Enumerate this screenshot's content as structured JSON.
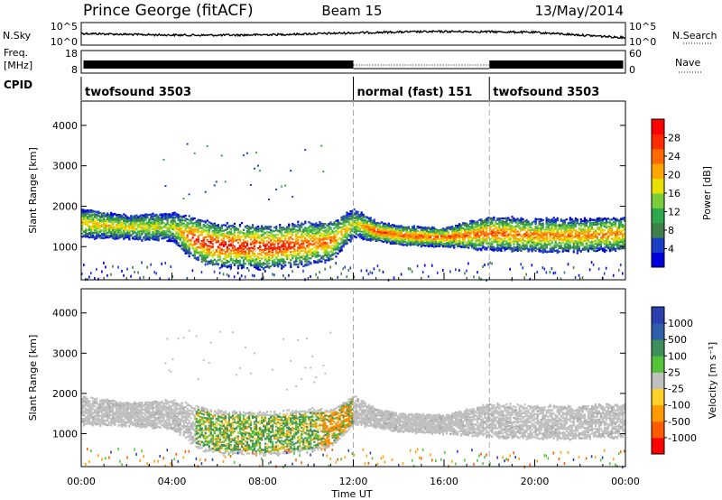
{
  "header": {
    "station": "Prince George (fitACF)",
    "beam": "Beam 15",
    "date": "13/May/2014"
  },
  "sky_panel": {
    "left_label": "N.Sky",
    "left_ticks": [
      "10^5",
      "10^0"
    ],
    "right_label": "N.Search",
    "right_ticks": [
      "10^5",
      "10^0"
    ]
  },
  "freq_panel": {
    "left_label_1": "Freq.",
    "left_label_2": "[MHz]",
    "left_ticks": [
      "18",
      "8"
    ],
    "right_label": "Nave",
    "right_ticks": [
      "60",
      "0"
    ]
  },
  "cpid": {
    "label": "CPID",
    "segments": [
      {
        "start_hour": 0,
        "end_hour": 12,
        "text": "twofsound 3503"
      },
      {
        "start_hour": 12,
        "end_hour": 18,
        "text": "normal (fast) 151"
      },
      {
        "start_hour": 18,
        "end_hour": 24,
        "text": "twofsound 3503"
      }
    ]
  },
  "x_axis": {
    "label": "Time UT",
    "ticks": [
      "00:00",
      "04:00",
      "08:00",
      "12:00",
      "16:00",
      "20:00",
      "00:00"
    ]
  },
  "power_panel": {
    "ylabel": "Slant Range [km]",
    "yticks": [
      "1000",
      "2000",
      "3000",
      "4000"
    ],
    "cbar_label": "Power [dB]",
    "cbar_ticks": [
      "4",
      "8",
      "12",
      "16",
      "20",
      "24",
      "28"
    ],
    "cbar_colors": [
      "#0000dd",
      "#1a3ec8",
      "#3f7f4a",
      "#2ea84c",
      "#7acc3a",
      "#e8e000",
      "#ffa500",
      "#ff6a00",
      "#ff2a00",
      "#ff0000"
    ]
  },
  "velocity_panel": {
    "ylabel": "Slant Range [km]",
    "yticks": [
      "1000",
      "2000",
      "3000",
      "4000"
    ],
    "cbar_label": "Velocity [m s⁻¹]",
    "cbar_ticks": [
      "1000",
      "500",
      "100",
      "25",
      "-25",
      "-100",
      "-500",
      "-1000"
    ],
    "cbar_colors": [
      "#2a3fb0",
      "#2f5fa8",
      "#3f8f5a",
      "#55c33a",
      "#c0c0c0",
      "#ffd02a",
      "#ff9a00",
      "#ff5a00",
      "#ff0000"
    ]
  },
  "chart_data": {
    "type": "heatmap",
    "x_range_hours": [
      0,
      24
    ],
    "y_range_km": [
      180,
      4600
    ],
    "power_band": {
      "hours": [
        0,
        2,
        4,
        5,
        6,
        7,
        8,
        9,
        10,
        11,
        12,
        13,
        14,
        16,
        18,
        20,
        22,
        24
      ],
      "center_km": [
        1600,
        1500,
        1500,
        1200,
        1050,
        1050,
        1000,
        1050,
        1100,
        1150,
        1600,
        1400,
        1300,
        1250,
        1350,
        1300,
        1300,
        1350
      ],
      "width_km": [
        600,
        500,
        600,
        900,
        900,
        900,
        900,
        900,
        900,
        800,
        600,
        400,
        400,
        400,
        700,
        700,
        700,
        700
      ],
      "peak_db": [
        20,
        18,
        16,
        28,
        28,
        28,
        28,
        28,
        24,
        24,
        16,
        26,
        24,
        24,
        24,
        22,
        22,
        22
      ]
    }
  }
}
